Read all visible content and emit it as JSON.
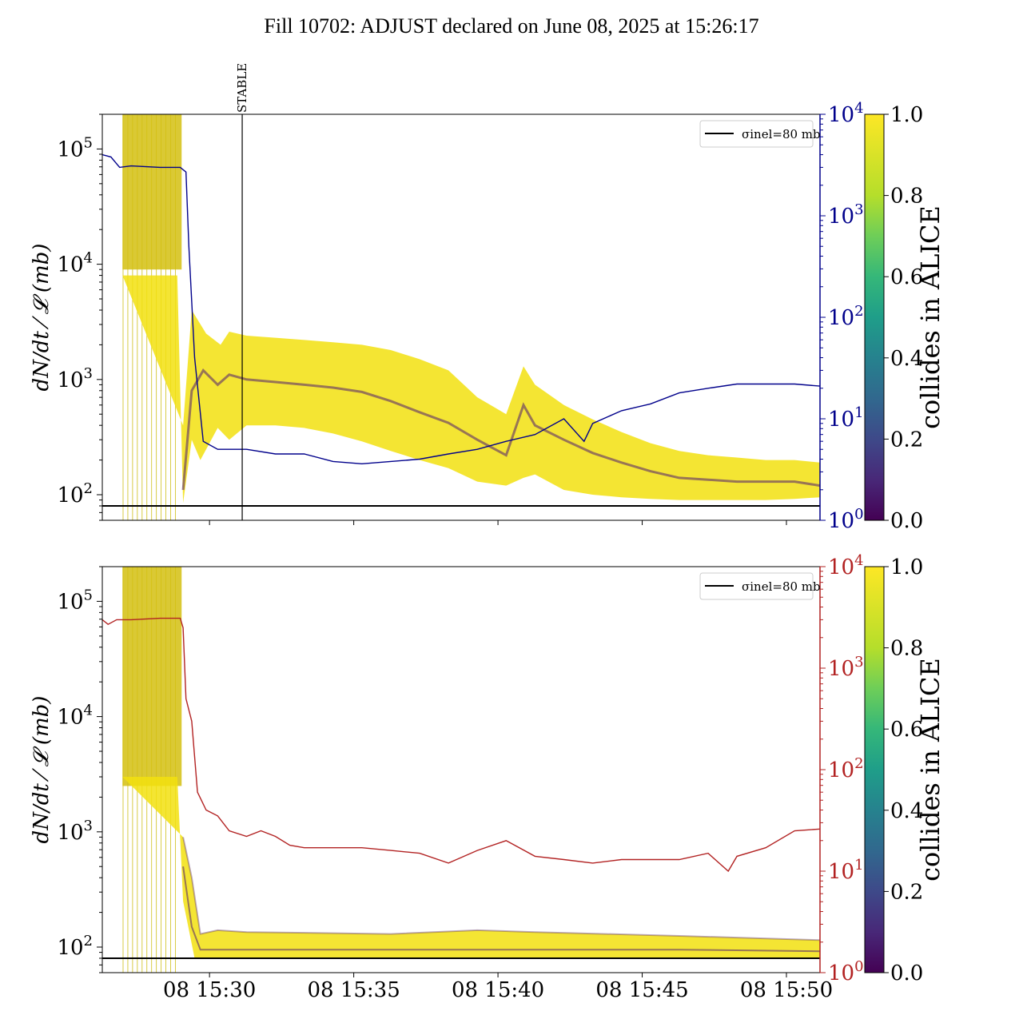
{
  "figure": {
    "title": "Fill 10702: ADJUST declared on June 08, 2025 at 15:26:17"
  },
  "colors": {
    "top_right_axis": "#00008b",
    "bottom_right_axis": "#b22222",
    "band_color": "#f2e10f",
    "band_dark": "#5a2a6a",
    "reference_line": "#000000"
  },
  "chart_data": [
    {
      "type": "line",
      "panel": "top",
      "ylabel": "dN/dt / 𝓛 (mb)",
      "yscale": "log",
      "ylim": [
        60,
        200000
      ],
      "y_ticks": [
        "10^2",
        "10^3",
        "10^4",
        "10^5"
      ],
      "y2scale": "log",
      "y2lim": [
        1,
        10000
      ],
      "y2_ticks": [
        "10^0",
        "10^1",
        "10^2",
        "10^3",
        "10^4"
      ],
      "xlim": [
        "2025-06-08 15:26:17",
        "2025-06-08 15:51:10"
      ],
      "x_ticks": [
        "08 15:30",
        "08 15:35",
        "08 15:40",
        "08 15:45",
        "08 15:50"
      ],
      "legend": {
        "position": "top-right",
        "entries": [
          {
            "label": "σinel=80 mb"
          }
        ]
      },
      "reference_line": {
        "label": "σinel=80 mb",
        "y": 80
      },
      "annotation": {
        "text": "STABLE",
        "time": "2025-06-08 15:31:08"
      },
      "colorbar": {
        "label": "collides in ALICE",
        "ticks": [
          "0.0",
          "0.2",
          "0.4",
          "0.6",
          "0.8",
          "1.0"
        ],
        "range": [
          0,
          1
        ]
      },
      "band": {
        "description_free": true,
        "lower": [
          [
            0.7,
            8000
          ],
          [
            2.6,
            8000
          ],
          [
            2.8,
            85
          ],
          [
            3.1,
            300
          ],
          [
            3.4,
            200
          ],
          [
            4.0,
            380
          ],
          [
            4.4,
            300
          ],
          [
            5,
            400
          ],
          [
            6,
            400
          ],
          [
            7,
            380
          ],
          [
            8,
            340
          ],
          [
            9,
            290
          ],
          [
            10,
            240
          ],
          [
            11,
            200
          ],
          [
            12,
            170
          ],
          [
            13,
            130
          ],
          [
            14,
            120
          ],
          [
            14.6,
            140
          ],
          [
            15,
            150
          ],
          [
            16,
            110
          ],
          [
            17,
            100
          ],
          [
            18,
            95
          ],
          [
            19,
            92
          ],
          [
            20,
            90
          ],
          [
            21,
            90
          ],
          [
            22,
            90
          ],
          [
            23,
            90
          ],
          [
            24,
            92
          ],
          [
            24.88,
            95
          ]
        ],
        "median": [
          [
            2.8,
            110
          ],
          [
            3.1,
            800
          ],
          [
            3.5,
            1200
          ],
          [
            4.0,
            900
          ],
          [
            4.4,
            1100
          ],
          [
            5,
            1000
          ],
          [
            6,
            950
          ],
          [
            7,
            900
          ],
          [
            8,
            850
          ],
          [
            9,
            780
          ],
          [
            10,
            650
          ],
          [
            11,
            520
          ],
          [
            12,
            420
          ],
          [
            13,
            300
          ],
          [
            14,
            220
          ],
          [
            14.6,
            600
          ],
          [
            15,
            400
          ],
          [
            16,
            300
          ],
          [
            17,
            230
          ],
          [
            18,
            190
          ],
          [
            19,
            160
          ],
          [
            20,
            140
          ],
          [
            21,
            135
          ],
          [
            22,
            130
          ],
          [
            23,
            130
          ],
          [
            24,
            130
          ],
          [
            24.88,
            120
          ]
        ],
        "upper": [
          [
            2.8,
            400
          ],
          [
            3.1,
            4000
          ],
          [
            3.6,
            2500
          ],
          [
            4.1,
            2000
          ],
          [
            4.4,
            2600
          ],
          [
            5,
            2400
          ],
          [
            6,
            2300
          ],
          [
            7,
            2200
          ],
          [
            8,
            2100
          ],
          [
            9,
            2000
          ],
          [
            10,
            1800
          ],
          [
            11,
            1500
          ],
          [
            12,
            1200
          ],
          [
            13,
            700
          ],
          [
            14,
            500
          ],
          [
            14.6,
            1300
          ],
          [
            15,
            900
          ],
          [
            16,
            600
          ],
          [
            17,
            450
          ],
          [
            18,
            350
          ],
          [
            19,
            280
          ],
          [
            20,
            240
          ],
          [
            21,
            220
          ],
          [
            22,
            210
          ],
          [
            23,
            200
          ],
          [
            24,
            200
          ],
          [
            24.88,
            190
          ]
        ]
      },
      "series": [
        {
          "axis": "right",
          "values_mb_vs_minutes": [
            [
              0,
              4000
            ],
            [
              0.3,
              3800
            ],
            [
              0.6,
              3000
            ],
            [
              1,
              3100
            ],
            [
              2,
              3000
            ],
            [
              2.7,
              3000
            ],
            [
              2.9,
              2700
            ],
            [
              3.0,
              500
            ],
            [
              3.2,
              40
            ],
            [
              3.5,
              6
            ],
            [
              4.0,
              5
            ],
            [
              5,
              5
            ],
            [
              6,
              4.5
            ],
            [
              7,
              4.5
            ],
            [
              8,
              3.8
            ],
            [
              9,
              3.6
            ],
            [
              10,
              3.8
            ],
            [
              11,
              4
            ],
            [
              12,
              4.5
            ],
            [
              13,
              5
            ],
            [
              14,
              6
            ],
            [
              15,
              7
            ],
            [
              16,
              10
            ],
            [
              16.7,
              6
            ],
            [
              17,
              9
            ],
            [
              18,
              12
            ],
            [
              19,
              14
            ],
            [
              20,
              18
            ],
            [
              21,
              20
            ],
            [
              22,
              22
            ],
            [
              23,
              22
            ],
            [
              24,
              22
            ],
            [
              24.88,
              21
            ]
          ]
        }
      ]
    },
    {
      "type": "line",
      "panel": "bottom",
      "ylabel": "dN/dt / 𝓛 (mb)",
      "yscale": "log",
      "ylim": [
        60,
        200000
      ],
      "y_ticks": [
        "10^2",
        "10^3",
        "10^4",
        "10^5"
      ],
      "y2scale": "log",
      "y2lim": [
        1,
        10000
      ],
      "y2_ticks": [
        "10^0",
        "10^1",
        "10^2",
        "10^3",
        "10^4"
      ],
      "xlim": [
        "2025-06-08 15:26:17",
        "2025-06-08 15:51:10"
      ],
      "x_ticks": [
        "08 15:30",
        "08 15:35",
        "08 15:40",
        "08 15:45",
        "08 15:50"
      ],
      "legend": {
        "position": "top-right",
        "entries": [
          {
            "label": "σinel=80 mb"
          }
        ]
      },
      "reference_line": {
        "label": "σinel=80 mb",
        "y": 80
      },
      "colorbar": {
        "label": "collides in ALICE",
        "ticks": [
          "0.0",
          "0.2",
          "0.4",
          "0.6",
          "0.8",
          "1.0"
        ],
        "range": [
          0,
          1
        ]
      },
      "band": {
        "lower": [
          [
            0.7,
            3000
          ],
          [
            2.6,
            3000
          ],
          [
            2.8,
            250
          ],
          [
            3.2,
            80
          ],
          [
            4,
            80
          ],
          [
            24.88,
            80
          ]
        ],
        "median": [
          [
            2.8,
            500
          ],
          [
            3.1,
            150
          ],
          [
            3.4,
            95
          ],
          [
            4,
            95
          ],
          [
            5,
            95
          ],
          [
            10,
            95
          ],
          [
            15,
            95
          ],
          [
            20,
            95
          ],
          [
            24.88,
            92
          ]
        ],
        "upper": [
          [
            2.8,
            900
          ],
          [
            3.1,
            400
          ],
          [
            3.4,
            130
          ],
          [
            4,
            140
          ],
          [
            5,
            135
          ],
          [
            10,
            130
          ],
          [
            13,
            140
          ],
          [
            15,
            135
          ],
          [
            20,
            125
          ],
          [
            24.88,
            115
          ]
        ]
      },
      "series": [
        {
          "axis": "right",
          "values_mb_vs_minutes": [
            [
              0,
              3000
            ],
            [
              0.2,
              2700
            ],
            [
              0.5,
              3000
            ],
            [
              1,
              3000
            ],
            [
              2,
              3100
            ],
            [
              2.7,
              3100
            ],
            [
              2.8,
              2500
            ],
            [
              2.9,
              500
            ],
            [
              3.1,
              300
            ],
            [
              3.3,
              60
            ],
            [
              3.6,
              40
            ],
            [
              4,
              35
            ],
            [
              4.4,
              25
            ],
            [
              5,
              22
            ],
            [
              5.5,
              25
            ],
            [
              6,
              22
            ],
            [
              6.5,
              18
            ],
            [
              7,
              17
            ],
            [
              8,
              17
            ],
            [
              9,
              17
            ],
            [
              10,
              16
            ],
            [
              11,
              15
            ],
            [
              12,
              12
            ],
            [
              13,
              16
            ],
            [
              14,
              20
            ],
            [
              15,
              14
            ],
            [
              16,
              13
            ],
            [
              17,
              12
            ],
            [
              18,
              13
            ],
            [
              19,
              13
            ],
            [
              20,
              13
            ],
            [
              21,
              15
            ],
            [
              21.7,
              10
            ],
            [
              22,
              14
            ],
            [
              23,
              17
            ],
            [
              24,
              25
            ],
            [
              24.88,
              26
            ]
          ]
        }
      ]
    }
  ]
}
